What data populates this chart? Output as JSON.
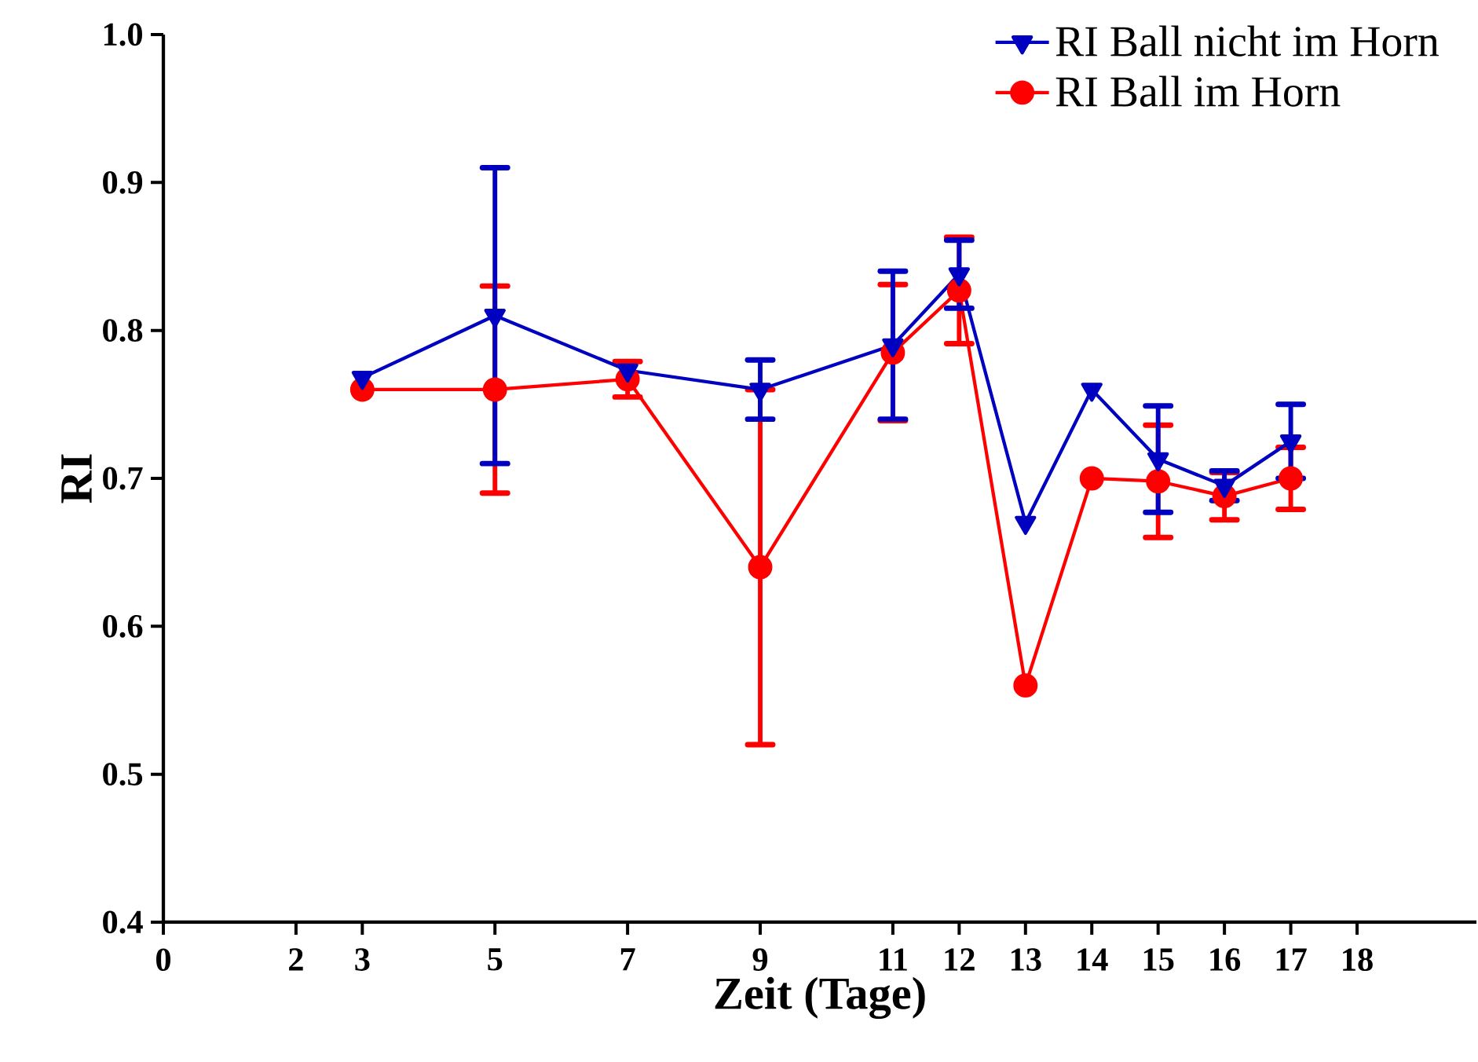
{
  "chart_data": {
    "type": "line",
    "xlabel": "Zeit (Tage)",
    "ylabel": "RI",
    "xlim": [
      0,
      19.8
    ],
    "xticks": [
      0,
      2,
      3,
      5,
      7,
      9,
      11,
      12,
      13,
      14,
      15,
      16,
      17,
      18
    ],
    "ylim": [
      0.4,
      1.0
    ],
    "yticks": [
      {
        "value": 0.4,
        "label": "0.4"
      },
      {
        "value": 0.5,
        "label": "0.5"
      },
      {
        "value": 0.6,
        "label": "0.6"
      },
      {
        "value": 0.7,
        "label": "0.7"
      },
      {
        "value": 0.8,
        "label": "0.8"
      },
      {
        "value": 0.9,
        "label": "0.9"
      },
      {
        "value": 1.0,
        "label": "1.0"
      }
    ],
    "x": [
      3,
      5,
      7,
      9,
      11,
      12,
      13,
      14,
      15,
      16,
      17
    ],
    "grid": false,
    "legend": "top right",
    "line_style": "solid",
    "series": [
      {
        "name": "RI Ball nicht im Horn",
        "color": "#0000c0",
        "marker": "triangle",
        "values": [
          0.768,
          0.81,
          0.773,
          0.76,
          0.79,
          0.838,
          0.67,
          0.76,
          0.713,
          0.695,
          0.725
        ],
        "errors": [
          null,
          0.1,
          null,
          0.02,
          0.05,
          0.023,
          null,
          null,
          0.036,
          0.01,
          0.025
        ]
      },
      {
        "name": "RI Ball im Horn",
        "color": "#ff0000",
        "marker": "circle",
        "values": [
          0.76,
          0.76,
          0.767,
          0.64,
          0.785,
          0.827,
          0.56,
          0.7,
          0.698,
          0.688,
          0.7
        ],
        "errors": [
          null,
          0.07,
          0.012,
          0.12,
          0.046,
          0.036,
          null,
          null,
          0.038,
          0.016,
          0.021
        ]
      }
    ]
  }
}
